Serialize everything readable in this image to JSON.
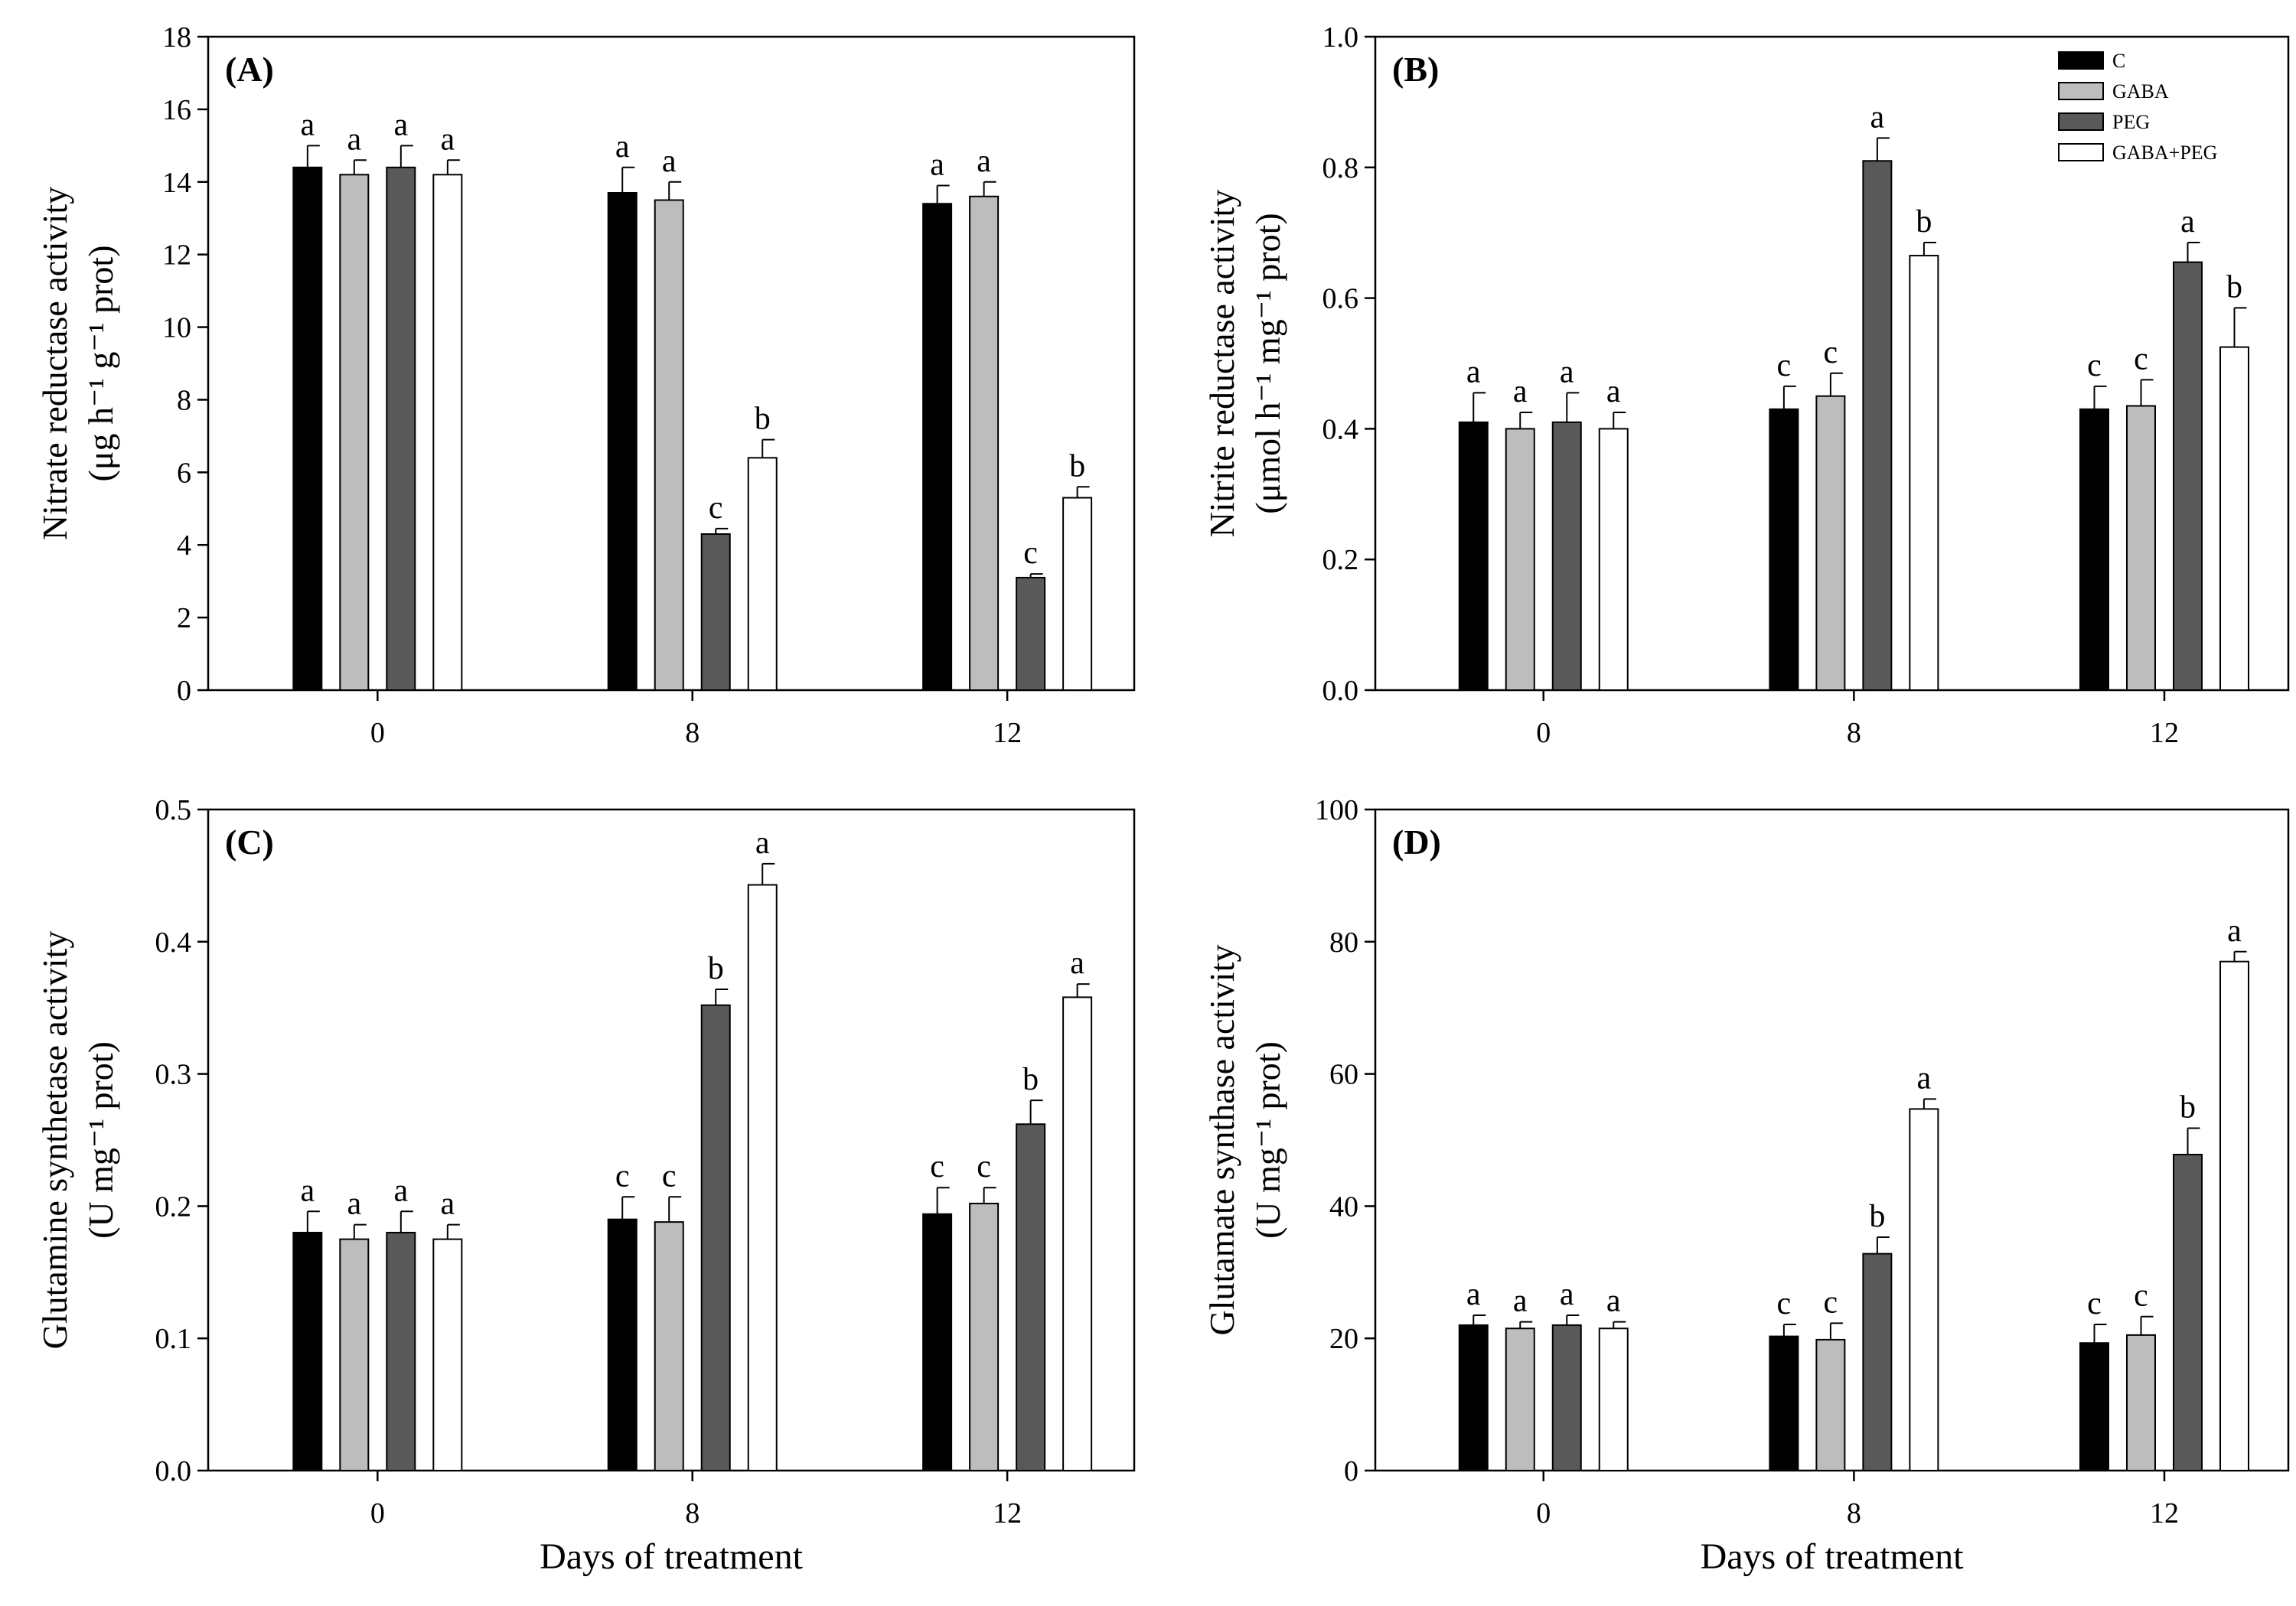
{
  "figure": {
    "xlabel": "Days of treatment",
    "legend": [
      {
        "label": "C",
        "color": "#000000"
      },
      {
        "label": "GABA",
        "color": "#bdbdbd"
      },
      {
        "label": "PEG",
        "color": "#595959"
      },
      {
        "label": "GABA+PEG",
        "color": "#ffffff"
      }
    ]
  },
  "chart_data": [
    {
      "type": "bar",
      "panel": "(A)",
      "ylabel_line1": "Nitrate reductase activity",
      "ylabel_line2": "(μg h⁻¹ g⁻¹ prot)",
      "categories": [
        "0",
        "8",
        "12"
      ],
      "ylim": [
        0,
        18
      ],
      "yticks": [
        "0",
        "2",
        "4",
        "6",
        "8",
        "10",
        "12",
        "14",
        "16",
        "18"
      ],
      "ytick_values": [
        0,
        2,
        4,
        6,
        8,
        10,
        12,
        14,
        16,
        18
      ],
      "series": [
        {
          "name": "C",
          "values": [
            14.4,
            13.7,
            13.4
          ],
          "errors": [
            0.6,
            0.7,
            0.5
          ],
          "letters": [
            "a",
            "a",
            "a"
          ]
        },
        {
          "name": "GABA",
          "values": [
            14.2,
            13.5,
            13.6
          ],
          "errors": [
            0.4,
            0.5,
            0.4
          ],
          "letters": [
            "a",
            "a",
            "a"
          ]
        },
        {
          "name": "PEG",
          "values": [
            14.4,
            4.3,
            3.1
          ],
          "errors": [
            0.6,
            0.15,
            0.1
          ],
          "letters": [
            "a",
            "c",
            "c"
          ]
        },
        {
          "name": "GABA+PEG",
          "values": [
            14.2,
            6.4,
            5.3
          ],
          "errors": [
            0.4,
            0.5,
            0.3
          ],
          "letters": [
            "a",
            "b",
            "b"
          ]
        }
      ]
    },
    {
      "type": "bar",
      "panel": "(B)",
      "ylabel_line1": "Nitrite reductase activity",
      "ylabel_line2": "(μmol h⁻¹ mg⁻¹ prot)",
      "categories": [
        "0",
        "8",
        "12"
      ],
      "ylim": [
        0,
        1.0
      ],
      "yticks": [
        "0.0",
        "0.2",
        "0.4",
        "0.6",
        "0.8",
        "1.0"
      ],
      "ytick_values": [
        0,
        0.2,
        0.4,
        0.6,
        0.8,
        1.0
      ],
      "legend_position": "top-right",
      "series": [
        {
          "name": "C",
          "values": [
            0.41,
            0.43,
            0.43
          ],
          "errors": [
            0.045,
            0.035,
            0.035
          ],
          "letters": [
            "a",
            "c",
            "c"
          ]
        },
        {
          "name": "GABA",
          "values": [
            0.4,
            0.45,
            0.435
          ],
          "errors": [
            0.025,
            0.035,
            0.04
          ],
          "letters": [
            "a",
            "c",
            "c"
          ]
        },
        {
          "name": "PEG",
          "values": [
            0.41,
            0.81,
            0.655
          ],
          "errors": [
            0.045,
            0.035,
            0.03
          ],
          "letters": [
            "a",
            "a",
            "a"
          ]
        },
        {
          "name": "GABA+PEG",
          "values": [
            0.4,
            0.665,
            0.525
          ],
          "errors": [
            0.025,
            0.02,
            0.06
          ],
          "letters": [
            "a",
            "b",
            "b"
          ]
        }
      ]
    },
    {
      "type": "bar",
      "panel": "(C)",
      "ylabel_line1": "Glutamine synthetase activity",
      "ylabel_line2": "(U mg⁻¹ prot)",
      "categories": [
        "0",
        "8",
        "12"
      ],
      "ylim": [
        0,
        0.5
      ],
      "yticks": [
        "0.0",
        "0.1",
        "0.2",
        "0.3",
        "0.4",
        "0.5"
      ],
      "ytick_values": [
        0,
        0.1,
        0.2,
        0.3,
        0.4,
        0.5
      ],
      "series": [
        {
          "name": "C",
          "values": [
            0.18,
            0.19,
            0.194
          ],
          "errors": [
            0.016,
            0.017,
            0.02
          ],
          "letters": [
            "a",
            "c",
            "c"
          ]
        },
        {
          "name": "GABA",
          "values": [
            0.175,
            0.188,
            0.202
          ],
          "errors": [
            0.011,
            0.019,
            0.012
          ],
          "letters": [
            "a",
            "c",
            "c"
          ]
        },
        {
          "name": "PEG",
          "values": [
            0.18,
            0.352,
            0.262
          ],
          "errors": [
            0.016,
            0.012,
            0.018
          ],
          "letters": [
            "a",
            "b",
            "b"
          ]
        },
        {
          "name": "GABA+PEG",
          "values": [
            0.175,
            0.443,
            0.358
          ],
          "errors": [
            0.011,
            0.016,
            0.01
          ],
          "letters": [
            "a",
            "a",
            "a"
          ]
        }
      ]
    },
    {
      "type": "bar",
      "panel": "(D)",
      "ylabel_line1": "Glutamate synthase activity",
      "ylabel_line2": "(U mg⁻¹ prot)",
      "categories": [
        "0",
        "8",
        "12"
      ],
      "ylim": [
        0,
        100
      ],
      "yticks": [
        "0",
        "20",
        "40",
        "60",
        "80",
        "100"
      ],
      "ytick_values": [
        0,
        20,
        40,
        60,
        80,
        100
      ],
      "series": [
        {
          "name": "C",
          "values": [
            22,
            20.3,
            19.3
          ],
          "errors": [
            1.5,
            1.8,
            2.8
          ],
          "letters": [
            "a",
            "c",
            "c"
          ]
        },
        {
          "name": "GABA",
          "values": [
            21.5,
            19.8,
            20.5
          ],
          "errors": [
            1.0,
            2.5,
            2.8
          ],
          "letters": [
            "a",
            "c",
            "c"
          ]
        },
        {
          "name": "PEG",
          "values": [
            22,
            32.8,
            47.8
          ],
          "errors": [
            1.5,
            2.5,
            4.0
          ],
          "letters": [
            "a",
            "b",
            "b"
          ]
        },
        {
          "name": "GABA+PEG",
          "values": [
            21.5,
            54.7,
            77
          ],
          "errors": [
            1.0,
            1.5,
            1.5
          ],
          "letters": [
            "a",
            "a",
            "a"
          ]
        }
      ]
    }
  ]
}
